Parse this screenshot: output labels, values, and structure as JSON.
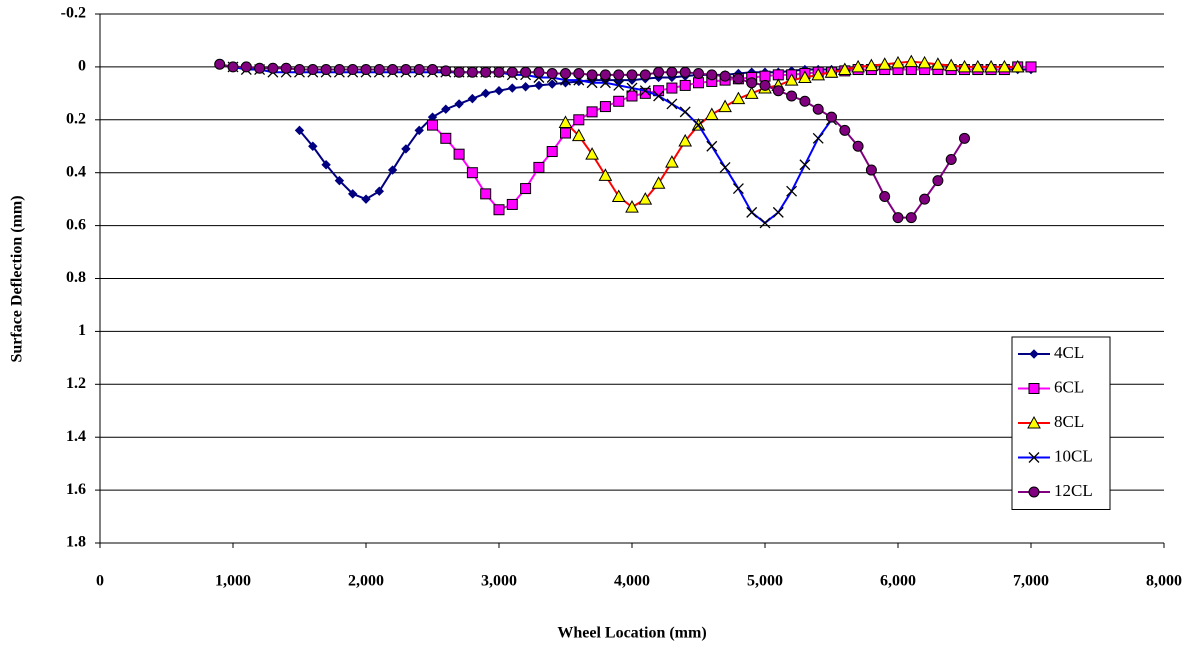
{
  "chart_data": {
    "type": "line",
    "x_label": "Wheel Location (mm)",
    "y_label": "Surface Deflection (mm)",
    "xlim": [
      0,
      8000
    ],
    "xticks": [
      0,
      {
        "value": 1000,
        "label": "1,000"
      },
      {
        "value": 2000,
        "label": "2,000"
      },
      {
        "value": 3000,
        "label": "3,000"
      },
      {
        "value": 4000,
        "label": "4,000"
      },
      {
        "value": 5000,
        "label": "5,000"
      },
      {
        "value": 6000,
        "label": "6,000"
      },
      {
        "value": 7000,
        "label": "7,000"
      },
      {
        "value": 8000,
        "label": "8,000"
      }
    ],
    "ylim": [
      -0.2,
      1.8
    ],
    "y_inverted": true,
    "yticks": [
      -0.2,
      0,
      0.2,
      0.4,
      0.6,
      0.8,
      1,
      1.2,
      1.4,
      1.6,
      1.8
    ],
    "grid": true,
    "legend": "lower right",
    "series": [
      {
        "name": "4CL",
        "color": "#000080",
        "marker": "diamond",
        "marker_color": "#000080",
        "x": [
          1500,
          1600,
          1700,
          1800,
          1900,
          2000,
          2100,
          2200,
          2300,
          2400,
          2500,
          2600,
          2700,
          2800,
          2900,
          3000,
          3100,
          3200,
          3300,
          3400,
          3500,
          3600,
          3700,
          3800,
          3900,
          4000,
          4100,
          4200,
          4300,
          4400,
          4500,
          4600,
          4700,
          4800,
          4900,
          5000,
          5100,
          5200,
          5300,
          5400,
          5500,
          5600,
          5700,
          5800,
          5900,
          6000,
          6100,
          6200,
          6300,
          6400,
          6500,
          6600,
          6700,
          6800,
          6900,
          7000
        ],
        "values": [
          0.24,
          0.3,
          0.37,
          0.43,
          0.48,
          0.5,
          0.47,
          0.39,
          0.31,
          0.24,
          0.19,
          0.16,
          0.14,
          0.12,
          0.1,
          0.09,
          0.08,
          0.075,
          0.07,
          0.065,
          0.06,
          0.055,
          0.05,
          0.05,
          0.05,
          0.05,
          0.045,
          0.04,
          0.04,
          0.035,
          0.03,
          0.03,
          0.03,
          0.025,
          0.02,
          0.02,
          0.02,
          0.015,
          0.01,
          0.01,
          0.01,
          0.01,
          0.01,
          0.01,
          0.01,
          0.01,
          0.01,
          0.01,
          0.01,
          0.01,
          0.01,
          0.01,
          0.01,
          0.01,
          0.01,
          0.01
        ]
      },
      {
        "name": "6CL",
        "color": "#FF00FF",
        "marker": "square",
        "marker_color": "#FF00FF",
        "x": [
          2500,
          2600,
          2700,
          2800,
          2900,
          3000,
          3100,
          3200,
          3300,
          3400,
          3500,
          3600,
          3700,
          3800,
          3900,
          4000,
          4100,
          4200,
          4300,
          4400,
          4500,
          4600,
          4700,
          4800,
          4900,
          5000,
          5100,
          5200,
          5300,
          5400,
          5500,
          5600,
          5700,
          5800,
          5900,
          6000,
          6100,
          6200,
          6300,
          6400,
          6500,
          6600,
          6700,
          6800,
          6900,
          7000
        ],
        "values": [
          0.22,
          0.27,
          0.33,
          0.4,
          0.48,
          0.54,
          0.52,
          0.46,
          0.38,
          0.32,
          0.25,
          0.2,
          0.17,
          0.15,
          0.13,
          0.11,
          0.1,
          0.09,
          0.08,
          0.07,
          0.06,
          0.055,
          0.05,
          0.045,
          0.04,
          0.035,
          0.03,
          0.03,
          0.025,
          0.02,
          0.02,
          0.015,
          0.01,
          0.01,
          0.01,
          0.01,
          0.01,
          0.01,
          0.01,
          0.01,
          0.01,
          0.01,
          0.01,
          0.01,
          0,
          0
        ]
      },
      {
        "name": "8CL",
        "color": "#FF0000",
        "marker": "triangle",
        "marker_color": "#FFFF00",
        "x": [
          3500,
          3600,
          3700,
          3800,
          3900,
          4000,
          4100,
          4200,
          4300,
          4400,
          4500,
          4600,
          4700,
          4800,
          4900,
          5000,
          5100,
          5200,
          5300,
          5400,
          5500,
          5600,
          5700,
          5800,
          5900,
          6000,
          6100,
          6200,
          6300,
          6400,
          6500,
          6600,
          6700,
          6800,
          6900
        ],
        "values": [
          0.21,
          0.26,
          0.33,
          0.41,
          0.49,
          0.53,
          0.5,
          0.44,
          0.36,
          0.28,
          0.22,
          0.18,
          0.15,
          0.12,
          0.1,
          0.08,
          0.07,
          0.05,
          0.04,
          0.03,
          0.02,
          0.01,
          0,
          -0.005,
          -0.01,
          -0.015,
          -0.02,
          -0.015,
          -0.01,
          -0.005,
          0,
          0,
          0,
          0,
          0
        ]
      },
      {
        "name": "10CL",
        "color": "#0000FF",
        "marker": "cross",
        "marker_color": "#000000",
        "x": [
          1000,
          1100,
          1200,
          1300,
          1400,
          1500,
          1600,
          1700,
          1800,
          1900,
          2000,
          2100,
          2200,
          2300,
          2400,
          2500,
          2600,
          2700,
          2800,
          2900,
          3000,
          3100,
          3200,
          3300,
          3400,
          3500,
          3600,
          3700,
          3800,
          3900,
          4000,
          4100,
          4200,
          4300,
          4400,
          4500,
          4600,
          4700,
          4800,
          4900,
          5000,
          5100,
          5200,
          5300,
          5400,
          5500
        ],
        "values": [
          0,
          0.01,
          0.01,
          0.02,
          0.02,
          0.02,
          0.02,
          0.02,
          0.02,
          0.02,
          0.02,
          0.02,
          0.02,
          0.02,
          0.02,
          0.02,
          0.02,
          0.02,
          0.02,
          0.02,
          0.02,
          0.03,
          0.03,
          0.04,
          0.04,
          0.05,
          0.05,
          0.06,
          0.06,
          0.07,
          0.08,
          0.09,
          0.11,
          0.14,
          0.17,
          0.22,
          0.3,
          0.38,
          0.46,
          0.55,
          0.59,
          0.55,
          0.47,
          0.37,
          0.27,
          0.2
        ]
      },
      {
        "name": "12CL",
        "color": "#800080",
        "marker": "circle",
        "marker_color": "#800080",
        "x": [
          900,
          1000,
          1100,
          1200,
          1300,
          1400,
          1500,
          1600,
          1700,
          1800,
          1900,
          2000,
          2100,
          2200,
          2300,
          2400,
          2500,
          2600,
          2700,
          2800,
          2900,
          3000,
          3100,
          3200,
          3300,
          3400,
          3500,
          3600,
          3700,
          3800,
          3900,
          4000,
          4100,
          4200,
          4300,
          4400,
          4500,
          4600,
          4700,
          4800,
          4900,
          5000,
          5100,
          5200,
          5300,
          5400,
          5500,
          5600,
          5700,
          5800,
          5900,
          6000,
          6100,
          6200,
          6300,
          6400,
          6500
        ],
        "values": [
          -0.01,
          0,
          0,
          0.005,
          0.005,
          0.005,
          0.01,
          0.01,
          0.01,
          0.01,
          0.01,
          0.01,
          0.01,
          0.01,
          0.01,
          0.01,
          0.01,
          0.015,
          0.02,
          0.02,
          0.02,
          0.02,
          0.02,
          0.02,
          0.02,
          0.025,
          0.025,
          0.025,
          0.03,
          0.03,
          0.03,
          0.03,
          0.03,
          0.02,
          0.02,
          0.02,
          0.025,
          0.03,
          0.035,
          0.045,
          0.06,
          0.07,
          0.09,
          0.11,
          0.13,
          0.16,
          0.19,
          0.24,
          0.3,
          0.39,
          0.49,
          0.57,
          0.57,
          0.5,
          0.43,
          0.35,
          0.27
        ]
      }
    ]
  }
}
